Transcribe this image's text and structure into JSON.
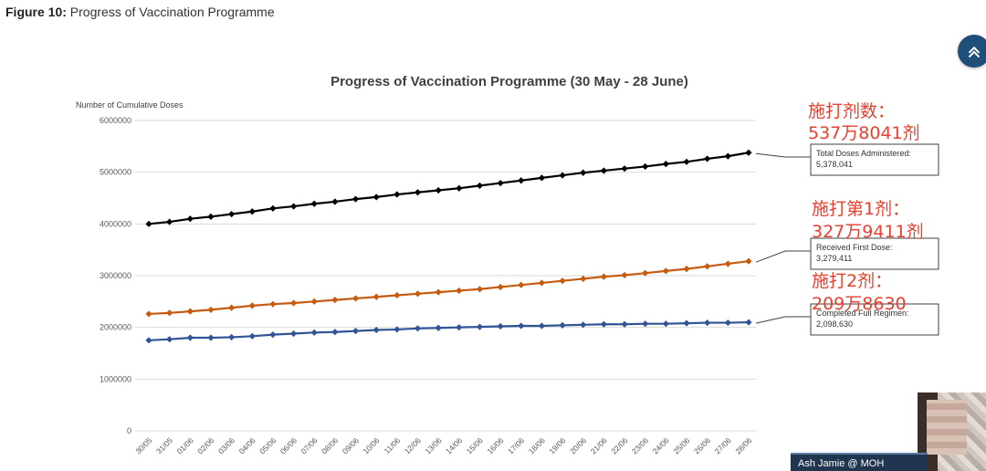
{
  "caption": {
    "label": "Figure 10:",
    "text": "Progress of Vaccination Programme"
  },
  "chart_data": {
    "type": "line",
    "title": "Progress of Vaccination Programme (30 May - 28 June)",
    "ylabel": "Number of Cumulative Doses",
    "xlabel": "",
    "ylim": [
      0,
      6000000
    ],
    "yticks": [
      0,
      1000000,
      2000000,
      3000000,
      4000000,
      5000000,
      6000000
    ],
    "ytick_labels": [
      "0",
      "1000000",
      "2000000",
      "3000000",
      "4000000",
      "5000000",
      "6000000"
    ],
    "grid": "horizontal",
    "categories": [
      "30/05",
      "31/05",
      "01/06",
      "02/06",
      "03/06",
      "04/06",
      "05/06",
      "06/06",
      "07/06",
      "08/06",
      "09/06",
      "10/06",
      "11/06",
      "12/06",
      "13/06",
      "14/06",
      "15/06",
      "16/06",
      "17/06",
      "18/06",
      "19/06",
      "20/06",
      "21/06",
      "22/06",
      "23/06",
      "24/06",
      "25/06",
      "26/06",
      "27/06",
      "28/06"
    ],
    "series": [
      {
        "color": "#000000",
        "values": [
          4000000,
          4040000,
          4100000,
          4140000,
          4190000,
          4240000,
          4300000,
          4340000,
          4390000,
          4430000,
          4480000,
          4520000,
          4570000,
          4610000,
          4650000,
          4690000,
          4740000,
          4790000,
          4840000,
          4890000,
          4940000,
          4990000,
          5030000,
          5070000,
          5110000,
          5160000,
          5200000,
          5260000,
          5310000,
          5378041
        ]
      },
      {
        "color": "#c55a11",
        "values": [
          2260000,
          2280000,
          2310000,
          2340000,
          2380000,
          2420000,
          2450000,
          2470000,
          2500000,
          2530000,
          2560000,
          2590000,
          2620000,
          2650000,
          2680000,
          2710000,
          2740000,
          2780000,
          2820000,
          2860000,
          2900000,
          2940000,
          2980000,
          3010000,
          3050000,
          3090000,
          3130000,
          3180000,
          3230000,
          3279411
        ]
      },
      {
        "color": "#2f5597",
        "values": [
          1750000,
          1770000,
          1800000,
          1800000,
          1810000,
          1830000,
          1860000,
          1880000,
          1900000,
          1910000,
          1930000,
          1950000,
          1960000,
          1980000,
          1990000,
          2000000,
          2010000,
          2020000,
          2030000,
          2030000,
          2040000,
          2050000,
          2060000,
          2060000,
          2070000,
          2070000,
          2080000,
          2090000,
          2090000,
          2098630
        ]
      }
    ],
    "annotations": [
      {
        "line1": "Total Doses Administered:",
        "line2": "5,378,041"
      },
      {
        "line1": "Received First Dose:",
        "line2": "3,279,411"
      },
      {
        "line1": "Completed Full Regimen:",
        "line2": "2,098,630"
      }
    ]
  },
  "overlay_notes": [
    {
      "line1": "施打剂数：",
      "line2": "537万8041剂"
    },
    {
      "line1": "施打第1剂：",
      "line2": "327万9411剂"
    },
    {
      "line1": "施打2剂：",
      "line2": "209万8630"
    }
  ],
  "presenter": {
    "name": "Ash Jamie @ MOH"
  },
  "colors": {
    "grid": "#d9d9d9",
    "annotation_red": "#e8402f",
    "button_bg": "#1f4e79"
  },
  "icons": {
    "scroll_top": "chevron-up-icon"
  }
}
